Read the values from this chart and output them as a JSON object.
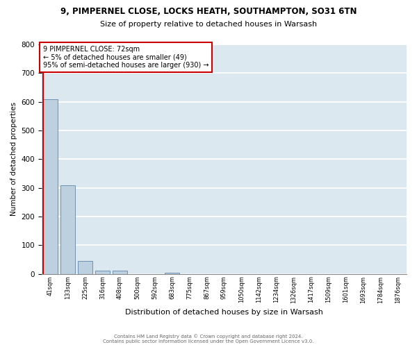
{
  "title_line1": "9, PIMPERNEL CLOSE, LOCKS HEATH, SOUTHAMPTON, SO31 6TN",
  "title_line2": "Size of property relative to detached houses in Warsash",
  "xlabel": "Distribution of detached houses by size in Warsash",
  "ylabel": "Number of detached properties",
  "categories": [
    "41sqm",
    "133sqm",
    "225sqm",
    "316sqm",
    "408sqm",
    "500sqm",
    "592sqm",
    "683sqm",
    "775sqm",
    "867sqm",
    "959sqm",
    "1050sqm",
    "1142sqm",
    "1234sqm",
    "1326sqm",
    "1417sqm",
    "1509sqm",
    "1601sqm",
    "1693sqm",
    "1784sqm",
    "1876sqm"
  ],
  "values": [
    610,
    308,
    46,
    11,
    11,
    0,
    0,
    5,
    0,
    0,
    0,
    0,
    0,
    0,
    0,
    0,
    0,
    0,
    0,
    0,
    0
  ],
  "bar_color": "#bdd0e0",
  "bar_edge_color": "#7090b0",
  "vline_color": "#cc0000",
  "annotation_title": "9 PIMPERNEL CLOSE: 72sqm",
  "annotation_line1": "← 5% of detached houses are smaller (49)",
  "annotation_line2": "95% of semi-detached houses are larger (930) →",
  "annotation_box_color": "#ffffff",
  "annotation_box_edge": "#cc0000",
  "ylim": [
    0,
    800
  ],
  "yticks": [
    0,
    100,
    200,
    300,
    400,
    500,
    600,
    700,
    800
  ],
  "bg_color": "#ffffff",
  "plot_bg_color": "#dce8f0",
  "grid_color": "#ffffff",
  "footer_line1": "Contains HM Land Registry data © Crown copyright and database right 2024.",
  "footer_line2": "Contains public sector information licensed under the Open Government Licence v3.0."
}
